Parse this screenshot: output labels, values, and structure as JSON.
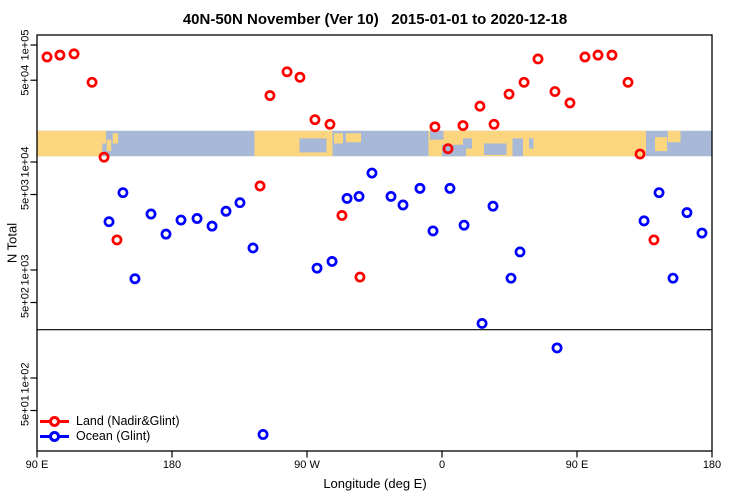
{
  "title": "40N-50N November (Ver 10)   2015-01-01 to 2020-12-18",
  "x_axis": {
    "label": "Longitude (deg E)",
    "ticks": [
      {
        "label": "90 E",
        "lon": 90
      },
      {
        "label": "180",
        "lon": 180
      },
      {
        "label": "90 W",
        "lon": 270
      },
      {
        "label": "0",
        "lon": 360
      },
      {
        "label": "90 E",
        "lon": 450
      },
      {
        "label": "180",
        "lon": 540
      }
    ]
  },
  "y_axis": {
    "label": "N Total",
    "ticks": [
      {
        "label": "1e+05",
        "value": 100000
      },
      {
        "label": "5e+04",
        "value": 50000
      },
      {
        "label": "1e+04",
        "value": 10000
      },
      {
        "label": "5e+03",
        "value": 5000
      },
      {
        "label": "1e+03",
        "value": 1000
      },
      {
        "label": "5e+02",
        "value": 500
      },
      {
        "label": "1e+02",
        "value": 100
      },
      {
        "label": "5e+01",
        "value": 50
      }
    ]
  },
  "legend": {
    "items": [
      {
        "label": "Land (Nadir&Glint)",
        "color": "#ff0000"
      },
      {
        "label": "Ocean (Glint)",
        "color": "#0000ff"
      }
    ]
  },
  "colors": {
    "land_points": "#ff0000",
    "ocean_points": "#0000ff",
    "map_land": "#fbd67f",
    "map_ocean": "#a7b9d6",
    "axis": "#000000"
  },
  "chart_data": {
    "type": "scatter",
    "title": "40N-50N November (Ver 10)   2015-01-01 to 2020-12-18",
    "xlabel": "Longitude (deg E)",
    "ylabel": "N Total",
    "x_axis_deg_east_range": [
      90,
      540
    ],
    "ylim": [
      21,
      120000
    ],
    "y_scale": "log",
    "reference_line_n": 280,
    "series": [
      {
        "name": "Land (Nadir&Glint)",
        "color": "#ff0000",
        "points": [
          {
            "lon": 96.7,
            "n": 79000
          },
          {
            "lon": 105.3,
            "n": 82000
          },
          {
            "lon": 114.7,
            "n": 84000
          },
          {
            "lon": 126.7,
            "n": 48000
          },
          {
            "lon": 134.7,
            "n": 11000
          },
          {
            "lon": 143.3,
            "n": 1900
          },
          {
            "lon": 238.7,
            "n": 6000
          },
          {
            "lon": 245.3,
            "n": 37000
          },
          {
            "lon": 256.7,
            "n": 59000
          },
          {
            "lon": 265.3,
            "n": 53000
          },
          {
            "lon": 275.3,
            "n": 23000
          },
          {
            "lon": 285.3,
            "n": 21000
          },
          {
            "lon": 293.3,
            "n": 3200
          },
          {
            "lon": 305.3,
            "n": 860
          },
          {
            "lon": 355.3,
            "n": 20000
          },
          {
            "lon": 364.0,
            "n": 13000
          },
          {
            "lon": 374.0,
            "n": 20500
          },
          {
            "lon": 385.3,
            "n": 30000
          },
          {
            "lon": 394.7,
            "n": 21000
          },
          {
            "lon": 404.7,
            "n": 38000
          },
          {
            "lon": 414.7,
            "n": 48000
          },
          {
            "lon": 424.0,
            "n": 76000
          },
          {
            "lon": 435.3,
            "n": 40000
          },
          {
            "lon": 445.3,
            "n": 32000
          },
          {
            "lon": 455.3,
            "n": 79000
          },
          {
            "lon": 464.0,
            "n": 82000
          },
          {
            "lon": 473.3,
            "n": 82000
          },
          {
            "lon": 484.0,
            "n": 48000
          },
          {
            "lon": 492.0,
            "n": 11700
          },
          {
            "lon": 501.3,
            "n": 1900
          }
        ]
      },
      {
        "name": "Ocean (Glint)",
        "color": "#0000ff",
        "points": [
          {
            "lon": 138.0,
            "n": 2800
          },
          {
            "lon": 147.3,
            "n": 5200
          },
          {
            "lon": 155.3,
            "n": 830
          },
          {
            "lon": 166.0,
            "n": 3300
          },
          {
            "lon": 176.0,
            "n": 2150
          },
          {
            "lon": 186.0,
            "n": 2900
          },
          {
            "lon": 196.7,
            "n": 3000
          },
          {
            "lon": 206.7,
            "n": 2550
          },
          {
            "lon": 216.0,
            "n": 3500
          },
          {
            "lon": 225.3,
            "n": 4200
          },
          {
            "lon": 234.0,
            "n": 1600
          },
          {
            "lon": 240.7,
            "n": 30
          },
          {
            "lon": 276.7,
            "n": 1040
          },
          {
            "lon": 286.7,
            "n": 1200
          },
          {
            "lon": 296.7,
            "n": 4600
          },
          {
            "lon": 304.7,
            "n": 4800
          },
          {
            "lon": 313.3,
            "n": 7900
          },
          {
            "lon": 326.0,
            "n": 4800
          },
          {
            "lon": 334.0,
            "n": 4000
          },
          {
            "lon": 345.3,
            "n": 5700
          },
          {
            "lon": 354.0,
            "n": 2300
          },
          {
            "lon": 365.3,
            "n": 5700
          },
          {
            "lon": 374.7,
            "n": 2600
          },
          {
            "lon": 386.7,
            "n": 320
          },
          {
            "lon": 394.0,
            "n": 3900
          },
          {
            "lon": 406.0,
            "n": 840
          },
          {
            "lon": 412.0,
            "n": 1470
          },
          {
            "lon": 436.7,
            "n": 190
          },
          {
            "lon": 494.7,
            "n": 2850
          },
          {
            "lon": 504.7,
            "n": 5200
          },
          {
            "lon": 514.0,
            "n": 840
          },
          {
            "lon": 523.3,
            "n": 3400
          },
          {
            "lon": 533.3,
            "n": 2200
          }
        ]
      }
    ],
    "map_strip": {
      "n_top": 18500,
      "n_bottom": 11200,
      "land_color": "#fbd67f",
      "ocean_color": "#a7b9d6",
      "land_segments": [
        {
          "lon0": 90,
          "lon1": 136,
          "t": 0,
          "b": 1
        },
        {
          "lon0": 136.5,
          "lon1": 139.5,
          "t": 0.35,
          "b": 0.8
        },
        {
          "lon0": 140.5,
          "lon1": 144,
          "t": 0.1,
          "b": 0.5
        },
        {
          "lon0": 235,
          "lon1": 287,
          "t": 0,
          "b": 1
        },
        {
          "lon0": 288,
          "lon1": 294,
          "t": 0.1,
          "b": 0.5
        },
        {
          "lon0": 296,
          "lon1": 306,
          "t": 0.1,
          "b": 0.45
        },
        {
          "lon0": 351,
          "lon1": 496,
          "t": 0,
          "b": 1
        },
        {
          "lon0": 502,
          "lon1": 510,
          "t": 0.25,
          "b": 0.8
        },
        {
          "lon0": 510.5,
          "lon1": 519,
          "t": 0,
          "b": 0.45
        }
      ],
      "water_patches": [
        {
          "lon0": 133.5,
          "lon1": 136,
          "t": 0.5,
          "b": 1
        },
        {
          "lon0": 265,
          "lon1": 283,
          "t": 0.3,
          "b": 0.85
        },
        {
          "lon0": 352,
          "lon1": 361,
          "t": 0,
          "b": 0.35
        },
        {
          "lon0": 360,
          "lon1": 376,
          "t": 0.55,
          "b": 1
        },
        {
          "lon0": 374,
          "lon1": 380,
          "t": 0.3,
          "b": 0.7
        },
        {
          "lon0": 388,
          "lon1": 403,
          "t": 0.5,
          "b": 0.95
        },
        {
          "lon0": 407,
          "lon1": 414,
          "t": 0.3,
          "b": 1
        },
        {
          "lon0": 418,
          "lon1": 421,
          "t": 0.3,
          "b": 0.7
        }
      ]
    }
  }
}
